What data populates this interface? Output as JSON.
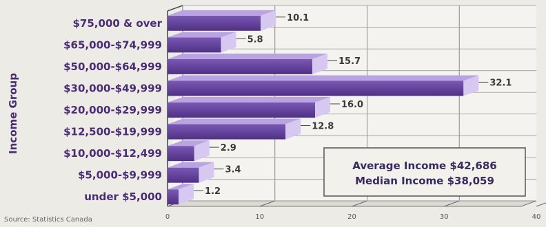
{
  "chart_data": {
    "type": "bar",
    "orientation": "horizontal",
    "ylabel": "Income Group",
    "xlabel": "",
    "title": "",
    "categories": [
      "$75,000 & over",
      "$65,000-$74,999",
      "$50,000-$64,999",
      "$30,000-$49,999",
      "$20,000-$29,999",
      "$12,500-$19,999",
      "$10,000-$12,499",
      "$5,000-$9,999",
      "under $5,000"
    ],
    "values": [
      10.1,
      5.8,
      15.7,
      32.1,
      16.0,
      12.8,
      2.9,
      3.4,
      1.2
    ],
    "value_labels": [
      "10.1",
      "5.8",
      "15.7",
      "32.1",
      "16.0",
      "12.8",
      "2.9",
      "3.4",
      "1.2"
    ],
    "xlim": [
      0,
      40
    ],
    "xticks": [
      "0",
      "10",
      "20",
      "30",
      "40"
    ],
    "grid": true,
    "bar_color": "#6b4aa3",
    "annotation": {
      "line1": "Average Income $42,686",
      "line2": "Median Income $38,059"
    },
    "source": "Source: Statistics Canada"
  }
}
